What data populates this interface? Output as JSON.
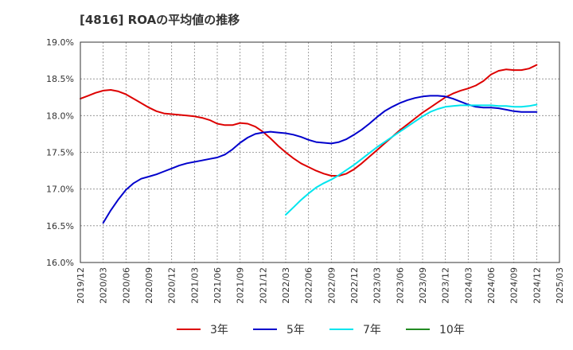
{
  "chart_data": {
    "type": "line",
    "title": "[4816]  ROAの平均値の推移",
    "xlabel": "",
    "ylabel": "",
    "ylim": [
      16.0,
      19.0
    ],
    "y_ticks": [
      16.0,
      16.5,
      17.0,
      17.5,
      18.0,
      18.5,
      19.0
    ],
    "y_tick_labels": [
      "16.0%",
      "16.5%",
      "17.0%",
      "17.5%",
      "18.0%",
      "18.5%",
      "19.0%"
    ],
    "x_ticks": [
      "2019/12",
      "2020/03",
      "2020/06",
      "2020/09",
      "2020/12",
      "2021/03",
      "2021/06",
      "2021/09",
      "2021/12",
      "2022/03",
      "2022/06",
      "2022/09",
      "2022/12",
      "2023/03",
      "2023/06",
      "2023/09",
      "2023/12",
      "2024/03",
      "2024/06",
      "2024/09",
      "2024/12",
      "2025/03"
    ],
    "grid": true,
    "legend_position": "bottom",
    "series": [
      {
        "name": "3年",
        "color": "#dd0000",
        "points": [
          [
            "2019/12",
            18.23
          ],
          [
            "2020/01",
            18.27
          ],
          [
            "2020/02",
            18.31
          ],
          [
            "2020/03",
            18.34
          ],
          [
            "2020/04",
            18.35
          ],
          [
            "2020/05",
            18.33
          ],
          [
            "2020/06",
            18.29
          ],
          [
            "2020/07",
            18.23
          ],
          [
            "2020/08",
            18.17
          ],
          [
            "2020/09",
            18.11
          ],
          [
            "2020/10",
            18.06
          ],
          [
            "2020/11",
            18.03
          ],
          [
            "2020/12",
            18.02
          ],
          [
            "2021/01",
            18.01
          ],
          [
            "2021/02",
            18.0
          ],
          [
            "2021/03",
            17.99
          ],
          [
            "2021/04",
            17.97
          ],
          [
            "2021/05",
            17.94
          ],
          [
            "2021/06",
            17.89
          ],
          [
            "2021/07",
            17.87
          ],
          [
            "2021/08",
            17.87
          ],
          [
            "2021/09",
            17.9
          ],
          [
            "2021/10",
            17.89
          ],
          [
            "2021/11",
            17.85
          ],
          [
            "2021/12",
            17.78
          ],
          [
            "2022/01",
            17.69
          ],
          [
            "2022/02",
            17.59
          ],
          [
            "2022/03",
            17.5
          ],
          [
            "2022/04",
            17.42
          ],
          [
            "2022/05",
            17.35
          ],
          [
            "2022/06",
            17.3
          ],
          [
            "2022/07",
            17.25
          ],
          [
            "2022/08",
            17.21
          ],
          [
            "2022/09",
            17.18
          ],
          [
            "2022/10",
            17.18
          ],
          [
            "2022/11",
            17.21
          ],
          [
            "2022/12",
            17.27
          ],
          [
            "2023/01",
            17.35
          ],
          [
            "2023/02",
            17.44
          ],
          [
            "2023/03",
            17.53
          ],
          [
            "2023/04",
            17.62
          ],
          [
            "2023/05",
            17.71
          ],
          [
            "2023/06",
            17.8
          ],
          [
            "2023/07",
            17.88
          ],
          [
            "2023/08",
            17.96
          ],
          [
            "2023/09",
            18.04
          ],
          [
            "2023/10",
            18.11
          ],
          [
            "2023/11",
            18.18
          ],
          [
            "2023/12",
            18.25
          ],
          [
            "2024/01",
            18.3
          ],
          [
            "2024/02",
            18.34
          ],
          [
            "2024/03",
            18.37
          ],
          [
            "2024/04",
            18.41
          ],
          [
            "2024/05",
            18.47
          ],
          [
            "2024/06",
            18.56
          ],
          [
            "2024/07",
            18.61
          ],
          [
            "2024/08",
            18.63
          ],
          [
            "2024/09",
            18.62
          ],
          [
            "2024/10",
            18.62
          ],
          [
            "2024/11",
            18.64
          ],
          [
            "2024/12",
            18.69
          ]
        ]
      },
      {
        "name": "5年",
        "color": "#0000cc",
        "points": [
          [
            "2020/03",
            16.54
          ],
          [
            "2020/04",
            16.71
          ],
          [
            "2020/05",
            16.86
          ],
          [
            "2020/06",
            16.99
          ],
          [
            "2020/07",
            17.08
          ],
          [
            "2020/08",
            17.14
          ],
          [
            "2020/09",
            17.17
          ],
          [
            "2020/10",
            17.2
          ],
          [
            "2020/11",
            17.24
          ],
          [
            "2020/12",
            17.28
          ],
          [
            "2021/01",
            17.32
          ],
          [
            "2021/02",
            17.35
          ],
          [
            "2021/03",
            17.37
          ],
          [
            "2021/04",
            17.39
          ],
          [
            "2021/05",
            17.41
          ],
          [
            "2021/06",
            17.43
          ],
          [
            "2021/07",
            17.47
          ],
          [
            "2021/08",
            17.54
          ],
          [
            "2021/09",
            17.63
          ],
          [
            "2021/10",
            17.7
          ],
          [
            "2021/11",
            17.75
          ],
          [
            "2021/12",
            17.77
          ],
          [
            "2022/01",
            17.78
          ],
          [
            "2022/02",
            17.77
          ],
          [
            "2022/03",
            17.76
          ],
          [
            "2022/04",
            17.74
          ],
          [
            "2022/05",
            17.71
          ],
          [
            "2022/06",
            17.67
          ],
          [
            "2022/07",
            17.64
          ],
          [
            "2022/08",
            17.63
          ],
          [
            "2022/09",
            17.62
          ],
          [
            "2022/10",
            17.64
          ],
          [
            "2022/11",
            17.68
          ],
          [
            "2022/12",
            17.74
          ],
          [
            "2023/01",
            17.81
          ],
          [
            "2023/02",
            17.89
          ],
          [
            "2023/03",
            17.98
          ],
          [
            "2023/04",
            18.06
          ],
          [
            "2023/05",
            18.12
          ],
          [
            "2023/06",
            18.17
          ],
          [
            "2023/07",
            18.21
          ],
          [
            "2023/08",
            18.24
          ],
          [
            "2023/09",
            18.26
          ],
          [
            "2023/10",
            18.27
          ],
          [
            "2023/11",
            18.27
          ],
          [
            "2023/12",
            18.26
          ],
          [
            "2024/01",
            18.23
          ],
          [
            "2024/02",
            18.19
          ],
          [
            "2024/03",
            18.15
          ],
          [
            "2024/04",
            18.12
          ],
          [
            "2024/05",
            18.11
          ],
          [
            "2024/06",
            18.11
          ],
          [
            "2024/07",
            18.1
          ],
          [
            "2024/08",
            18.08
          ],
          [
            "2024/09",
            18.06
          ],
          [
            "2024/10",
            18.05
          ],
          [
            "2024/11",
            18.05
          ],
          [
            "2024/12",
            18.05
          ]
        ]
      },
      {
        "name": "7年",
        "color": "#00e5ee",
        "points": [
          [
            "2022/03",
            16.65
          ],
          [
            "2022/04",
            16.75
          ],
          [
            "2022/05",
            16.85
          ],
          [
            "2022/06",
            16.94
          ],
          [
            "2022/07",
            17.02
          ],
          [
            "2022/08",
            17.08
          ],
          [
            "2022/09",
            17.13
          ],
          [
            "2022/10",
            17.19
          ],
          [
            "2022/11",
            17.26
          ],
          [
            "2022/12",
            17.33
          ],
          [
            "2023/01",
            17.41
          ],
          [
            "2023/02",
            17.49
          ],
          [
            "2023/03",
            17.57
          ],
          [
            "2023/04",
            17.64
          ],
          [
            "2023/05",
            17.71
          ],
          [
            "2023/06",
            17.78
          ],
          [
            "2023/07",
            17.85
          ],
          [
            "2023/08",
            17.92
          ],
          [
            "2023/09",
            17.99
          ],
          [
            "2023/10",
            18.05
          ],
          [
            "2023/11",
            18.09
          ],
          [
            "2023/12",
            18.12
          ],
          [
            "2024/01",
            18.13
          ],
          [
            "2024/02",
            18.14
          ],
          [
            "2024/03",
            18.14
          ],
          [
            "2024/04",
            18.14
          ],
          [
            "2024/05",
            18.14
          ],
          [
            "2024/06",
            18.14
          ],
          [
            "2024/07",
            18.13
          ],
          [
            "2024/08",
            18.13
          ],
          [
            "2024/09",
            18.12
          ],
          [
            "2024/10",
            18.12
          ],
          [
            "2024/11",
            18.13
          ],
          [
            "2024/12",
            18.15
          ]
        ]
      },
      {
        "name": "10年",
        "color": "#228b22",
        "points": []
      }
    ]
  }
}
